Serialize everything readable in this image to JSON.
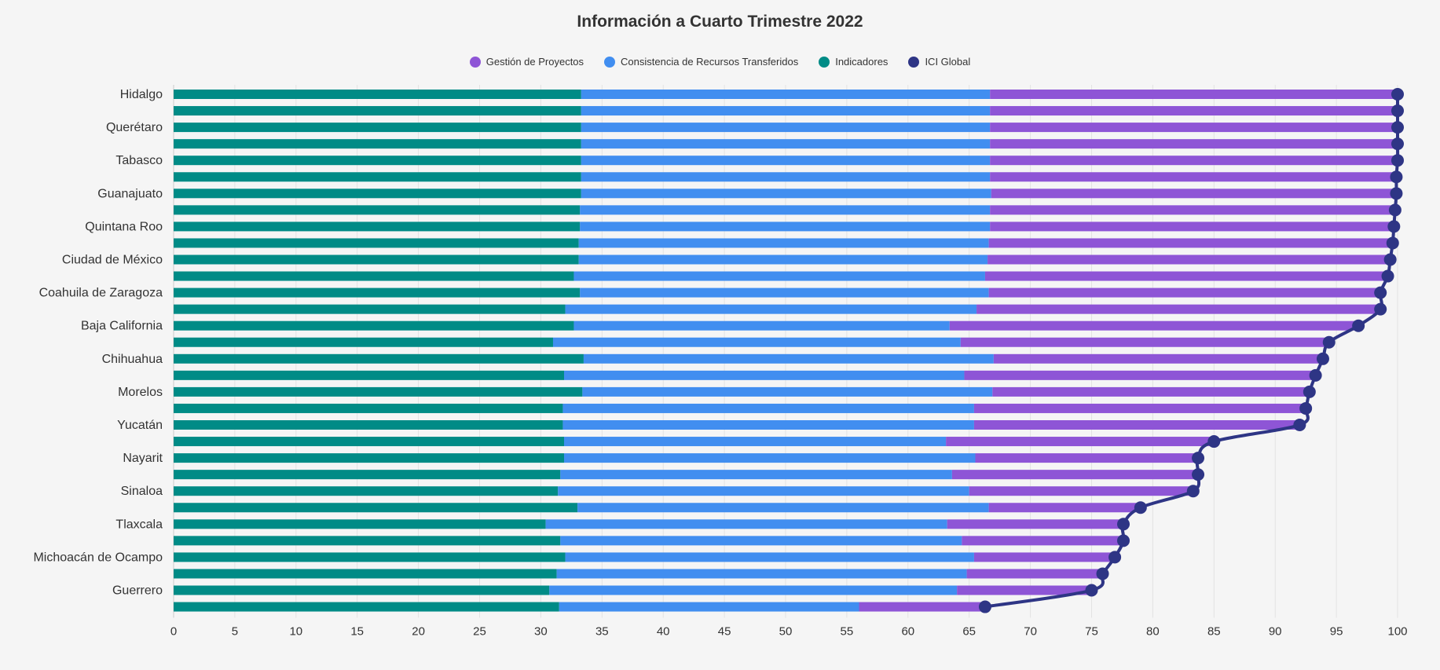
{
  "chart_data": {
    "type": "bar",
    "orientation": "horizontal",
    "stacked": true,
    "title": "Información a Cuarto Trimestre 2022",
    "xlim": [
      0,
      100
    ],
    "xticks": [
      0,
      5,
      10,
      15,
      20,
      25,
      30,
      35,
      40,
      45,
      50,
      55,
      60,
      65,
      70,
      75,
      80,
      85,
      90,
      95,
      100
    ],
    "grid": true,
    "legend_position": "top-center",
    "categories": [
      "Hidalgo",
      "",
      "Querétaro",
      "",
      "Tabasco",
      "",
      "Guanajuato",
      "",
      "Quintana Roo",
      "",
      "Ciudad de México",
      "",
      "Coahuila de Zaragoza",
      "",
      "Baja California",
      "",
      "Chihuahua",
      "",
      "Morelos",
      "",
      "Yucatán",
      "",
      "Nayarit",
      "",
      "Sinaloa",
      "",
      "Tlaxcala",
      "",
      "Michoacán de Ocampo",
      "",
      "Guerrero",
      ""
    ],
    "series": [
      {
        "name": "Indicadores",
        "color": "#008b86",
        "values": [
          33.3,
          33.3,
          33.3,
          33.3,
          33.3,
          33.3,
          33.3,
          33.2,
          33.2,
          33.1,
          33.1,
          32.7,
          33.2,
          32.0,
          32.7,
          31.0,
          33.5,
          31.9,
          33.4,
          31.8,
          31.8,
          31.9,
          31.9,
          31.6,
          31.4,
          33.0,
          30.4,
          31.6,
          32.0,
          31.3,
          30.7,
          31.5
        ]
      },
      {
        "name": "Consistencia de Recursos Transferidos",
        "color": "#418ef0",
        "values": [
          33.4,
          33.4,
          33.4,
          33.4,
          33.4,
          33.4,
          33.5,
          33.5,
          33.5,
          33.5,
          33.4,
          33.6,
          33.4,
          33.6,
          30.7,
          33.3,
          33.5,
          32.7,
          33.5,
          33.6,
          33.6,
          31.2,
          33.6,
          32.0,
          33.6,
          33.6,
          32.8,
          32.8,
          33.4,
          33.5,
          33.3,
          24.5
        ]
      },
      {
        "name": "Gestión de Proyectos",
        "color": "#8e55d6",
        "values": [
          33.3,
          33.3,
          33.3,
          33.3,
          33.3,
          33.2,
          33.1,
          33.1,
          33.0,
          33.0,
          32.9,
          32.9,
          32.0,
          33.0,
          33.4,
          30.1,
          26.9,
          28.7,
          25.9,
          27.1,
          26.6,
          21.9,
          18.2,
          20.1,
          18.3,
          12.4,
          14.4,
          13.2,
          11.5,
          11.1,
          11.0,
          10.3
        ]
      }
    ],
    "line_series": {
      "name": "ICI Global",
      "color": "#2e3585",
      "values": [
        100,
        100,
        100,
        100,
        100,
        99.9,
        99.9,
        99.8,
        99.7,
        99.6,
        99.4,
        99.2,
        98.6,
        98.6,
        96.8,
        94.4,
        93.9,
        93.3,
        92.8,
        92.5,
        92.0,
        85.0,
        83.7,
        83.7,
        83.3,
        79.0,
        77.6,
        77.6,
        76.9,
        75.9,
        75.0,
        66.3
      ]
    }
  },
  "legend": [
    {
      "label": "Gestión de Proyectos",
      "color": "#8e55d6"
    },
    {
      "label": "Consistencia de Recursos Transferidos",
      "color": "#418ef0"
    },
    {
      "label": "Indicadores",
      "color": "#008b86"
    },
    {
      "label": "ICI Global",
      "color": "#2e3585"
    }
  ]
}
